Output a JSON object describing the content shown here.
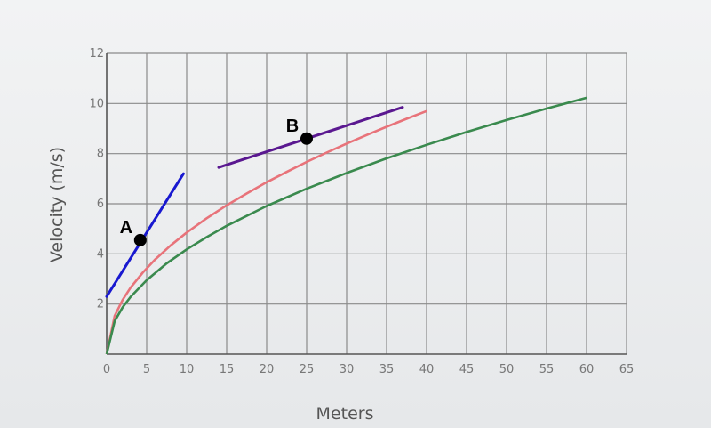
{
  "chart_data": {
    "type": "line",
    "title": "",
    "xlabel": "Meters",
    "ylabel": "Velocity (m/s)",
    "xlim": [
      0,
      65
    ],
    "ylim": [
      0,
      12
    ],
    "xticks": [
      0,
      5,
      10,
      15,
      20,
      25,
      30,
      35,
      40,
      45,
      50,
      55,
      60,
      65
    ],
    "yticks": [
      2,
      4,
      6,
      8,
      10,
      12
    ],
    "grid": true,
    "series": [
      {
        "color": "#e8737a",
        "x": [
          0,
          1,
          2,
          3,
          4.5,
          6,
          8,
          10,
          12.5,
          15,
          17.5,
          20,
          22.5,
          25,
          27.5,
          30,
          32.5,
          35,
          37.5,
          40
        ],
        "values": [
          0,
          1.53,
          2.17,
          2.66,
          3.25,
          3.76,
          4.34,
          4.85,
          5.42,
          5.94,
          6.41,
          6.86,
          7.27,
          7.67,
          8.04,
          8.4,
          8.74,
          9.07,
          9.39,
          9.7
        ]
      },
      {
        "color": "#3a8a4e",
        "x": [
          0,
          1,
          2,
          3,
          5,
          7.5,
          10,
          12.5,
          15,
          20,
          25,
          30,
          35,
          40,
          45,
          50,
          55,
          60
        ],
        "values": [
          0,
          1.32,
          1.87,
          2.29,
          2.95,
          3.62,
          4.18,
          4.67,
          5.12,
          5.91,
          6.6,
          7.23,
          7.81,
          8.35,
          8.86,
          9.34,
          9.8,
          10.23
        ]
      }
    ],
    "tangents": [
      {
        "color": "#1818d0",
        "x": [
          0,
          9.6
        ],
        "values": [
          2.3,
          7.2
        ]
      },
      {
        "color": "#5a1890",
        "x": [
          14,
          37
        ],
        "values": [
          7.45,
          9.85
        ]
      }
    ],
    "points": [
      {
        "label": "A",
        "x": 4.2,
        "y": 4.55
      },
      {
        "label": "B",
        "x": 25,
        "y": 8.6
      }
    ]
  }
}
